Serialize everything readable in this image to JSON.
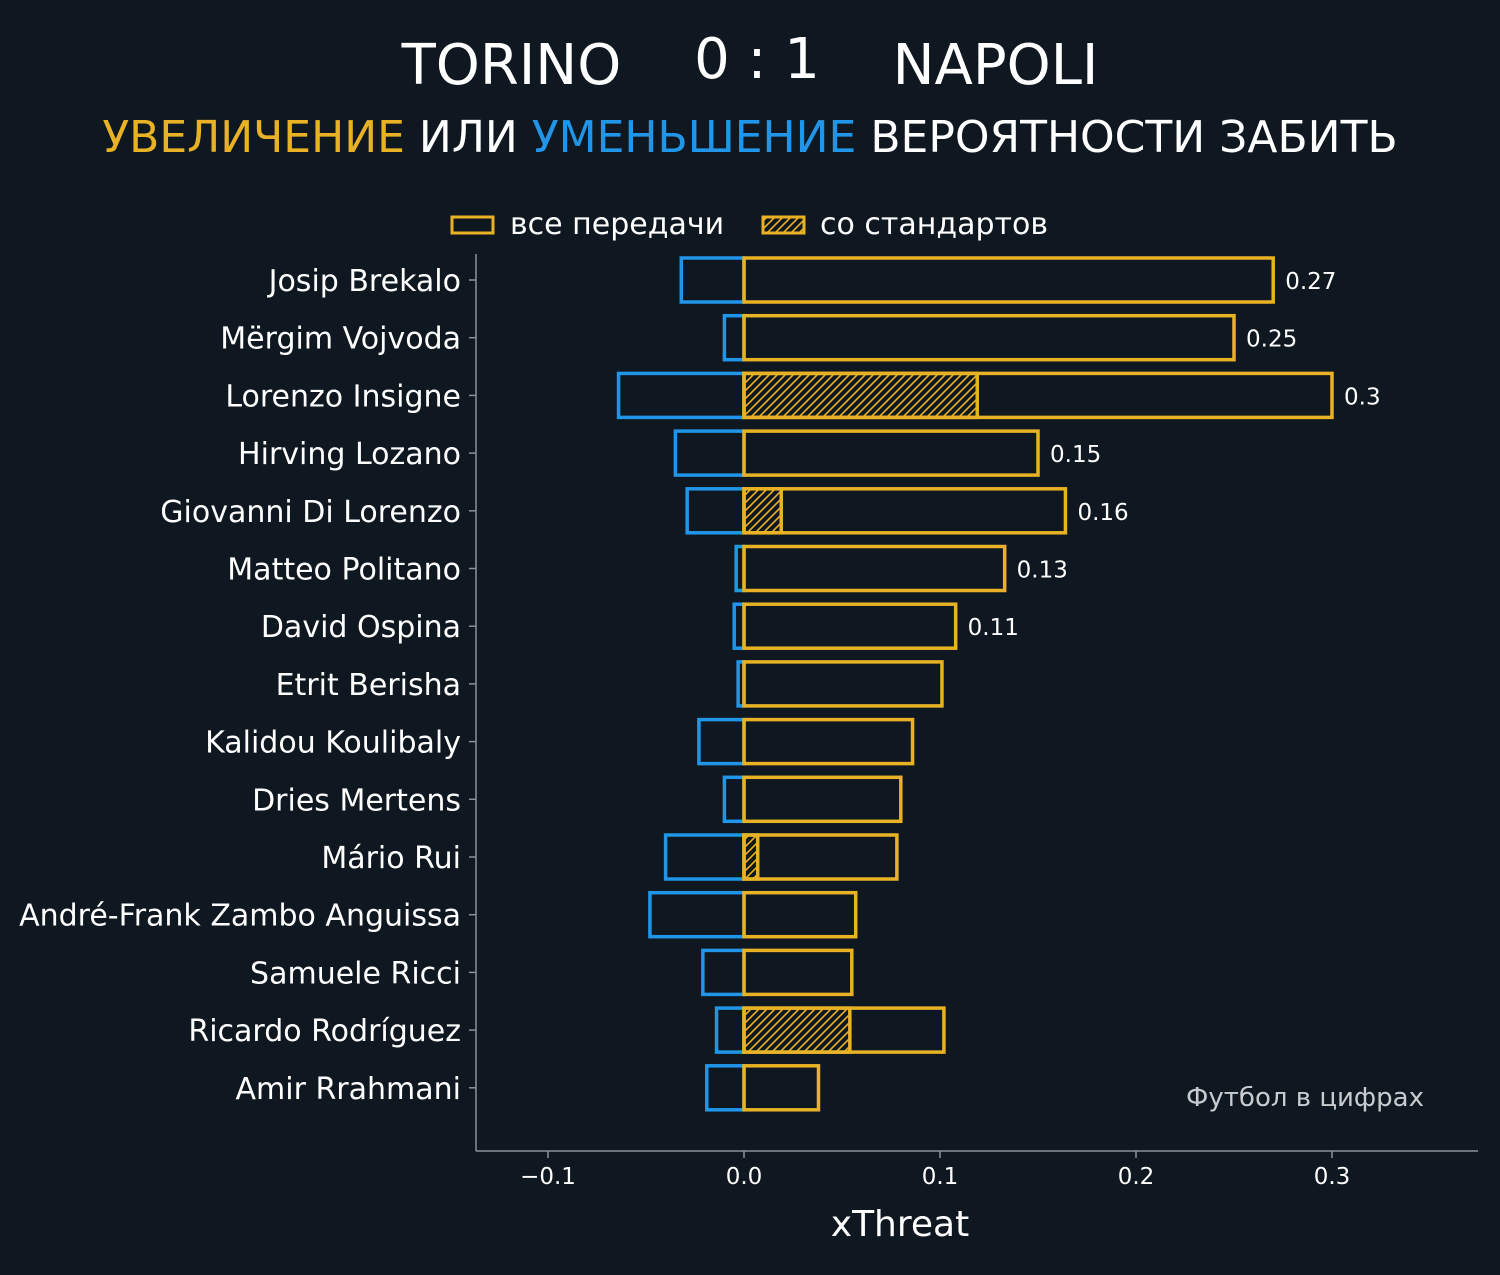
{
  "header": {
    "home_team": "TORINO",
    "score": "0 : 1",
    "away_team": "NAPOLI",
    "subtitle_increase": "УВЕЛИЧЕНИЕ",
    "subtitle_or": "ИЛИ",
    "subtitle_decrease": "УМЕНЬШЕНИЕ",
    "subtitle_rest": "ВЕРОЯТНОСТИ ЗАБИТЬ"
  },
  "watermark": "Футбол в цифрах",
  "colors": {
    "background": "#0f1820",
    "increase": "#e8b224",
    "decrease": "#2196e8",
    "text": "#ffffff",
    "axis": "#8a9399"
  },
  "chart_data": {
    "type": "bar",
    "orientation": "horizontal",
    "xlabel": "xThreat",
    "xlim": [
      -0.135,
      0.37
    ],
    "xticks": [
      -0.1,
      0.0,
      0.1,
      0.2,
      0.3
    ],
    "xtick_labels": [
      "−0.1",
      "0.0",
      "0.1",
      "0.2",
      "0.3"
    ],
    "legend": {
      "placement": "top",
      "entries": [
        "все передачи",
        "со стандартов"
      ]
    },
    "categories": [
      "Josip Brekalo",
      "Mërgim Vojvoda",
      "Lorenzo Insigne",
      "Hirving Lozano",
      "Giovanni Di Lorenzo",
      "Matteo Politano",
      "David Ospina",
      "Etrit Berisha",
      "Kalidou Koulibaly",
      "Dries Mertens",
      "Mário Rui",
      "André-Frank Zambo Anguissa",
      "Samuele Ricci",
      "Ricardo Rodríguez",
      "Amir Rrahmani"
    ],
    "series": [
      {
        "name": "все передачи",
        "values": [
          0.27,
          0.25,
          0.3,
          0.15,
          0.164,
          0.133,
          0.108,
          0.101,
          0.086,
          0.08,
          0.078,
          0.057,
          0.055,
          0.102,
          0.038
        ]
      },
      {
        "name": "со стандартов",
        "values": [
          0,
          0,
          0.119,
          0,
          0.019,
          0,
          0,
          0,
          0,
          0,
          0.007,
          0,
          0,
          0.054,
          0
        ]
      },
      {
        "values": [
          -0.032,
          -0.01,
          -0.064,
          -0.035,
          -0.029,
          -0.004,
          -0.005,
          -0.003,
          -0.023,
          -0.01,
          -0.04,
          -0.048,
          -0.021,
          -0.014,
          -0.019
        ]
      }
    ],
    "value_labels": [
      "0.27",
      "0.25",
      "0.3",
      "0.15",
      "0.16",
      "0.13",
      "0.11",
      "",
      "",
      "",
      "",
      "",
      "",
      "",
      ""
    ]
  }
}
